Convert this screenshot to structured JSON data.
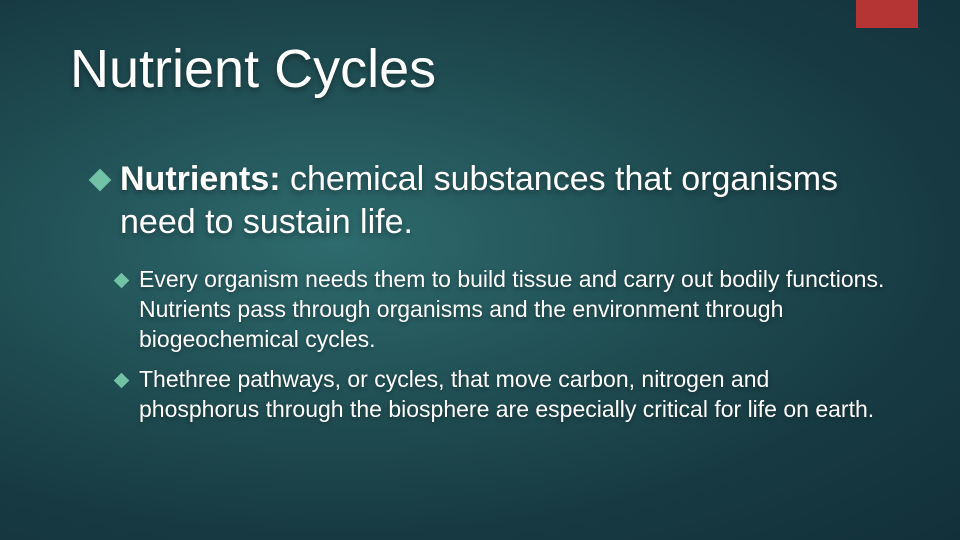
{
  "slide": {
    "title": "Nutrient Cycles",
    "main_bullet": {
      "label": "Nutrients:",
      "text": " chemical substances that organisms need to sustain life."
    },
    "sub_bullets": [
      "Every organism needs them to build tissue and carry out bodily functions. Nutrients pass through organisms and the environment through biogeochemical cycles.",
      "Thethree pathways, or cycles, that move carbon, nitrogen and phosphorus through the biosphere are especially critical for life on earth."
    ]
  },
  "style": {
    "accent_color": "#b53535",
    "bullet_color": "#72c3a6",
    "title_fontsize": 54,
    "main_fontsize": 34,
    "sub_fontsize": 23,
    "bg_gradient_inner": "#2e6b6e",
    "bg_gradient_outer": "#12303a",
    "text_color": "#ffffff"
  }
}
